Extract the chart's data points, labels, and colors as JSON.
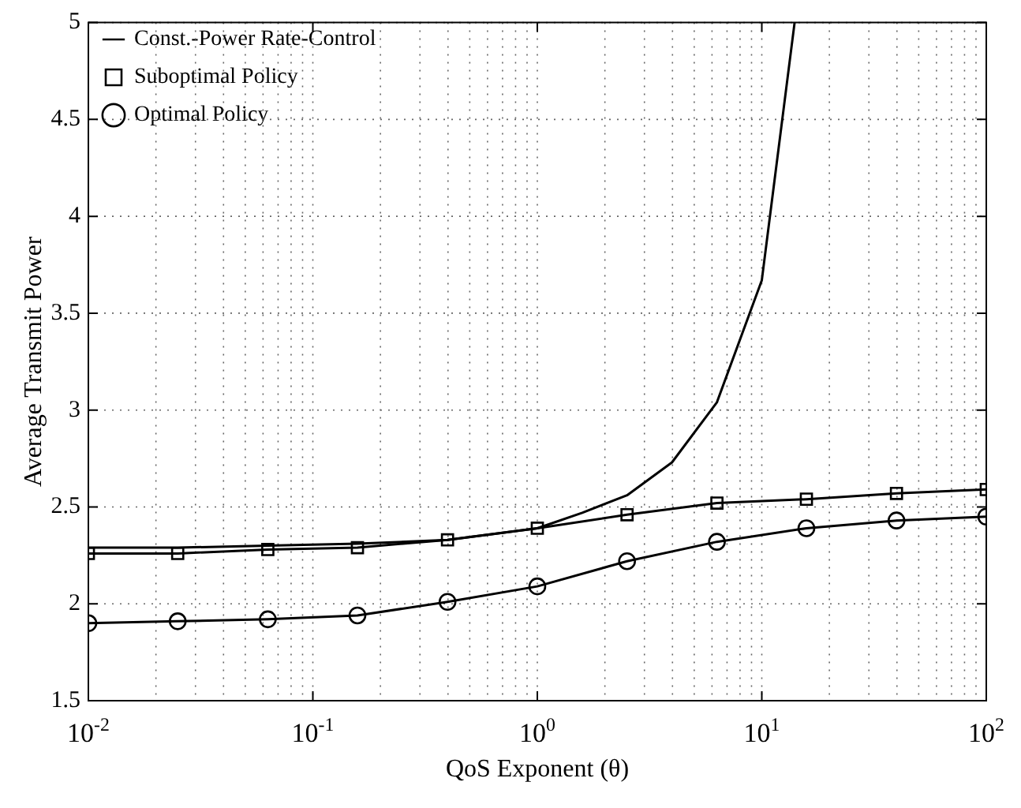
{
  "chart_data": {
    "type": "line",
    "xlabel": "QoS Exponent (θ)",
    "ylabel": "Average Transmit Power",
    "log": "x",
    "grid": true,
    "legend": "top left",
    "xlim": [
      0.01,
      100
    ],
    "xticks": [
      {
        "value": 0.01,
        "label": "10$^{-2}$"
      },
      {
        "value": 0.1,
        "label": "10$^{-1}$"
      },
      {
        "value": 1,
        "label": "10$^{0}$"
      },
      {
        "value": 10,
        "label": "10$^{1}$"
      },
      {
        "value": 100,
        "label": "10$^{2}$"
      }
    ],
    "ylim": [
      1.5,
      5
    ],
    "yticks": [
      1.5,
      2,
      2.5,
      3,
      3.5,
      4,
      4.5,
      5
    ],
    "series": [
      {
        "name": "Const.-Power Rate-Control",
        "color": "#000000",
        "marker": "none",
        "x": [
          0.01,
          0.025,
          0.063,
          0.158,
          0.398,
          1,
          1.585,
          2.51,
          3.98,
          6.31,
          10,
          14
        ],
        "values": [
          2.29,
          2.29,
          2.3,
          2.31,
          2.33,
          2.39,
          2.47,
          2.56,
          2.73,
          3.04,
          3.67,
          5
        ]
      },
      {
        "name": "Suboptimal Policy",
        "color": "#000000",
        "marker": "square",
        "x": [
          0.01,
          0.025,
          0.063,
          0.158,
          0.398,
          1,
          2.51,
          6.31,
          15.8,
          39.8,
          100
        ],
        "values": [
          2.26,
          2.26,
          2.28,
          2.29,
          2.33,
          2.39,
          2.46,
          2.52,
          2.54,
          2.57,
          2.59
        ]
      },
      {
        "name": "Optimal Policy",
        "color": "#000000",
        "marker": "circle",
        "x": [
          0.01,
          0.025,
          0.063,
          0.158,
          0.398,
          1,
          2.51,
          6.31,
          15.8,
          39.8,
          100
        ],
        "values": [
          1.9,
          1.91,
          1.92,
          1.94,
          2.01,
          2.09,
          2.22,
          2.32,
          2.39,
          2.43,
          2.45
        ]
      }
    ]
  }
}
